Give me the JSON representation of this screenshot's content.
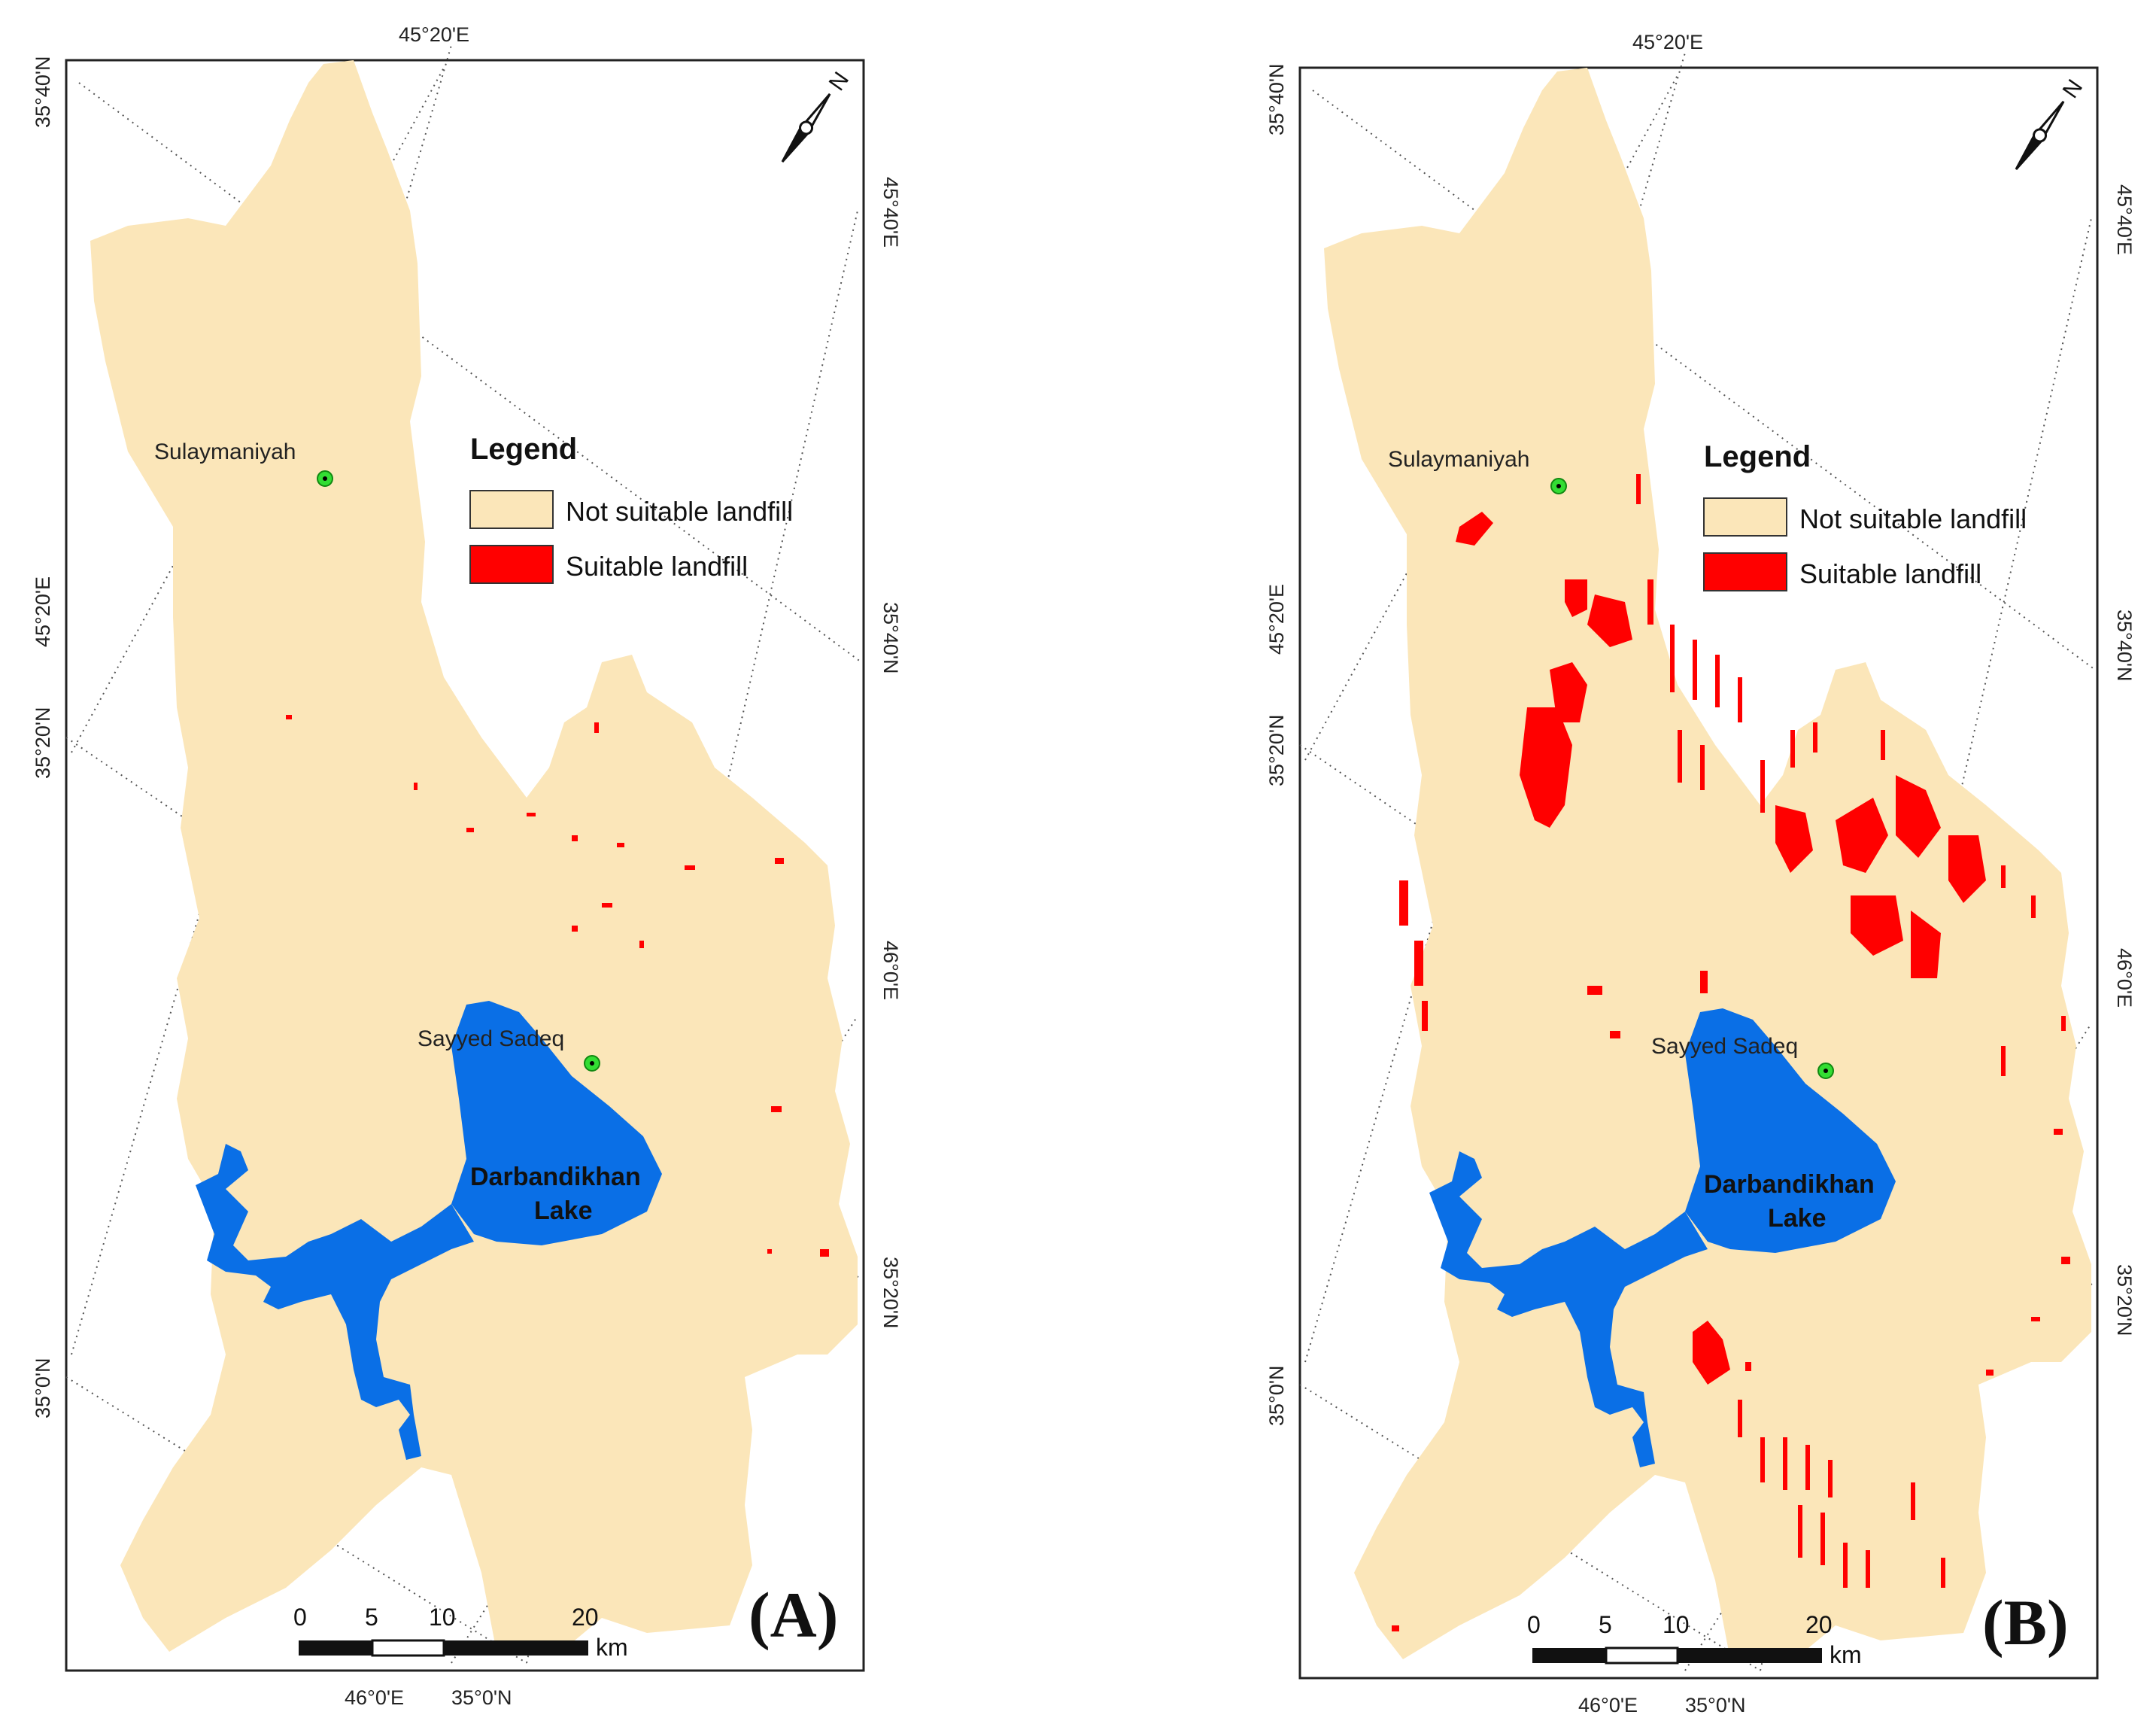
{
  "colors": {
    "not_suitable": "#fbe6b9",
    "suitable": "#ff0000",
    "water": "#0a6fe6",
    "city_marker": "#33dd33"
  },
  "panels": [
    {
      "label": "(A)",
      "top_coord": "45°20'E",
      "left_coords": [
        "35°40'N",
        "45°20'E",
        "35°20'N",
        "35°0'N"
      ],
      "right_coords": [
        "45°40'E",
        "35°40'N",
        "46°0'E",
        "35°20'N"
      ],
      "bottom_coords": [
        "46°0'E",
        "35°0'N"
      ],
      "cities": [
        {
          "name": "Sulaymaniyah"
        },
        {
          "name": "Sayyed Sadeq"
        }
      ],
      "lake_label": [
        "Darbandikhan",
        "Lake"
      ],
      "legend": {
        "title": "Legend",
        "items": [
          {
            "label": "Not suitable landfill",
            "symbol": "not_suitable"
          },
          {
            "label": "Suitable landfill",
            "symbol": "suitable"
          }
        ]
      },
      "north_label": "N",
      "scale": {
        "ticks": [
          "0",
          "5",
          "10",
          "20"
        ],
        "unit": "km"
      }
    },
    {
      "label": "(B)",
      "top_coord": "45°20'E",
      "left_coords": [
        "35°40'N",
        "45°20'E",
        "35°20'N",
        "35°0'N"
      ],
      "right_coords": [
        "45°40'E",
        "35°40'N",
        "46°0'E",
        "35°20'N"
      ],
      "bottom_coords": [
        "46°0'E",
        "35°0'N"
      ],
      "cities": [
        {
          "name": "Sulaymaniyah"
        },
        {
          "name": "Sayyed Sadeq"
        }
      ],
      "lake_label": [
        "Darbandikhan",
        "Lake"
      ],
      "legend": {
        "title": "Legend",
        "items": [
          {
            "label": "Not suitable landfill",
            "symbol": "not_suitable"
          },
          {
            "label": "Suitable landfill",
            "symbol": "suitable"
          }
        ]
      },
      "north_label": "N",
      "scale": {
        "ticks": [
          "0",
          "5",
          "10",
          "20"
        ],
        "unit": "km"
      }
    }
  ]
}
